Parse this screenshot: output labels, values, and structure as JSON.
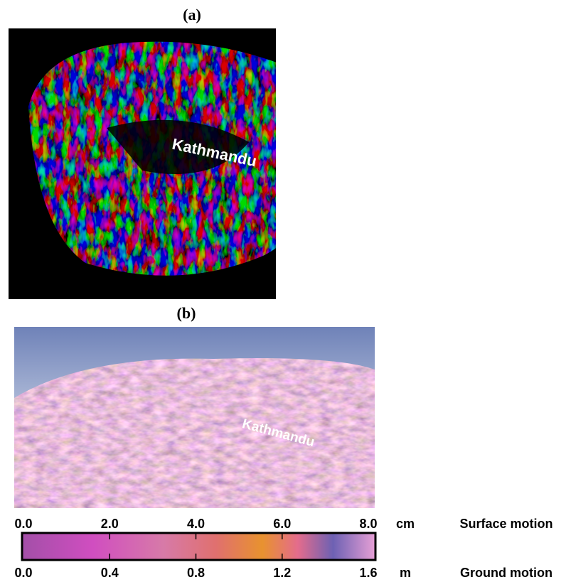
{
  "panels": [
    {
      "label": "(a)",
      "place": "Kathmandu"
    },
    {
      "label": "(b)",
      "place": "Kathmandu"
    }
  ],
  "colorbar": {
    "top": {
      "lim": [
        0,
        8
      ],
      "ticks": [
        {
          "value": 0,
          "label": "0.0"
        },
        {
          "value": 2,
          "label": "2.0"
        },
        {
          "value": 4,
          "label": "4.0"
        },
        {
          "value": 6,
          "label": "6.0"
        },
        {
          "value": 8,
          "label": "8.0"
        }
      ],
      "unit": "cm",
      "title": "Surface motion"
    },
    "bottom": {
      "lim": [
        0,
        1.6
      ],
      "ticks": [
        {
          "value": 0,
          "label": "0.0"
        },
        {
          "value": 0.4,
          "label": "0.4"
        },
        {
          "value": 0.8,
          "label": "0.8"
        },
        {
          "value": 1.2,
          "label": "1.2"
        },
        {
          "value": 1.6,
          "label": "1.6"
        }
      ],
      "unit": "m",
      "title": "Ground motion"
    }
  }
}
